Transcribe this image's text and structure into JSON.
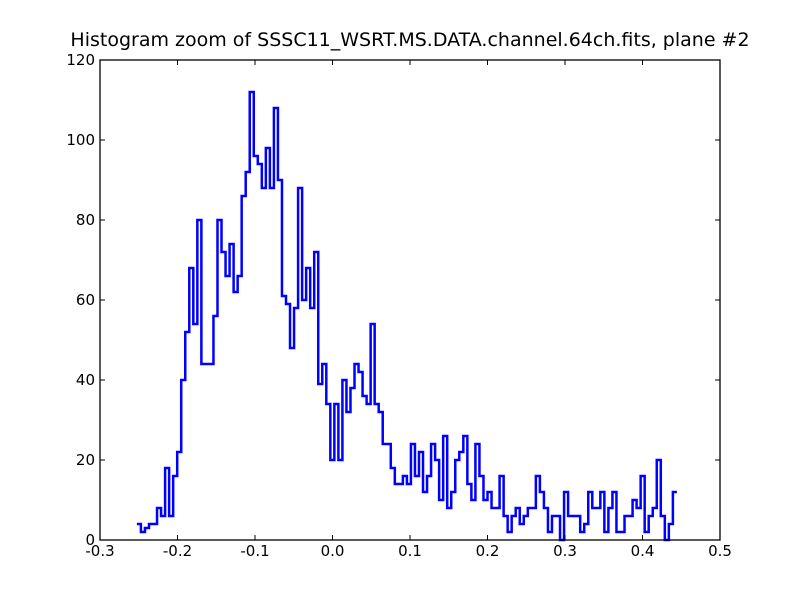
{
  "chart_data": {
    "type": "line",
    "title": "Histogram zoom of SSSC11_WSRT.MS.DATA.channel.64ch.fits, plane #2",
    "xlabel": "",
    "ylabel": "",
    "xlim": [
      -0.3,
      0.5
    ],
    "ylim": [
      0,
      120
    ],
    "xticks": [
      -0.3,
      -0.2,
      -0.1,
      0.0,
      0.1,
      0.2,
      0.3,
      0.4,
      0.5
    ],
    "xtick_labels": [
      "-0.3",
      "-0.2",
      "-0.1",
      "0.0",
      "0.1",
      "0.2",
      "0.3",
      "0.4",
      "0.5"
    ],
    "yticks": [
      0,
      20,
      40,
      60,
      80,
      100,
      120
    ],
    "ytick_labels": [
      "0",
      "20",
      "40",
      "60",
      "80",
      "100",
      "120"
    ],
    "grid": false,
    "legend": "none",
    "colors": {
      "series": "#0000ff",
      "axes": "#000000",
      "background": "#ffffff"
    },
    "series": [
      {
        "drawstyle": "steps",
        "bin_width": 0.0052,
        "bin_start": -0.2524,
        "values": [
          4,
          2,
          3,
          4,
          4,
          8,
          6,
          18,
          6,
          16,
          22,
          40,
          52,
          68,
          54,
          80,
          44,
          44,
          44,
          56,
          80,
          72,
          66,
          74,
          62,
          66,
          86,
          92,
          112,
          96,
          94,
          88,
          98,
          88,
          108,
          90,
          61,
          59,
          48,
          58,
          88,
          60,
          68,
          58,
          72,
          39,
          44,
          34,
          20,
          34,
          20,
          40,
          32,
          38,
          44,
          42,
          36,
          34,
          54,
          34,
          32,
          24,
          24,
          18,
          14,
          14,
          16,
          14,
          24,
          16,
          22,
          12,
          16,
          24,
          20,
          10,
          26,
          8,
          12,
          20,
          22,
          26,
          14,
          10,
          24,
          16,
          10,
          12,
          8,
          8,
          16,
          6,
          2,
          6,
          8,
          4,
          6,
          8,
          8,
          16,
          12,
          8,
          2,
          6,
          6,
          0,
          12,
          6,
          6,
          6,
          2,
          4,
          12,
          8,
          8,
          12,
          2,
          8,
          12,
          2,
          2,
          6,
          6,
          10,
          8,
          16,
          2,
          6,
          8,
          20,
          6,
          0,
          4,
          12
        ]
      }
    ]
  }
}
